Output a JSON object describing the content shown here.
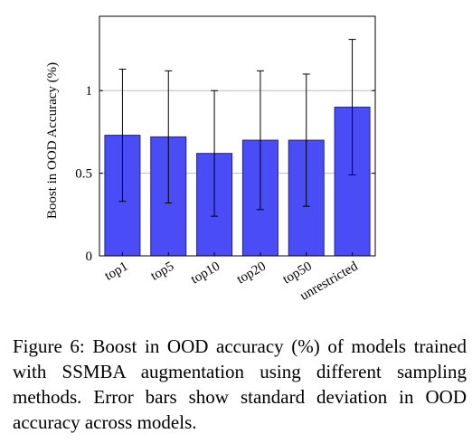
{
  "chart_data": {
    "type": "bar",
    "categories": [
      "top1",
      "top5",
      "top10",
      "top20",
      "top50",
      "unrestricted"
    ],
    "values": [
      0.73,
      0.72,
      0.62,
      0.7,
      0.7,
      0.9
    ],
    "errors": [
      0.4,
      0.4,
      0.38,
      0.42,
      0.4,
      0.41
    ],
    "ylabel": "Boost in OOD Accuracy (%)",
    "xlabel": "",
    "title": "",
    "ylim": [
      0,
      1.45
    ],
    "yticks": [
      0,
      0.5,
      1
    ],
    "ytick_labels": [
      "0",
      "0.5",
      "1"
    ],
    "grid": "horizontal",
    "colors": {
      "bar_fill": "#4a4cf5",
      "bar_stroke": "#1f2196",
      "grid": "#bdbdbd",
      "axis": "#000000",
      "error_bar": "#000000"
    }
  },
  "caption": {
    "text": "Figure 6:  Boost in OOD accuracy (%) of models trained with SSMBA augmentation using different sampling methods. Error bars show standard deviation in OOD accuracy across models."
  }
}
